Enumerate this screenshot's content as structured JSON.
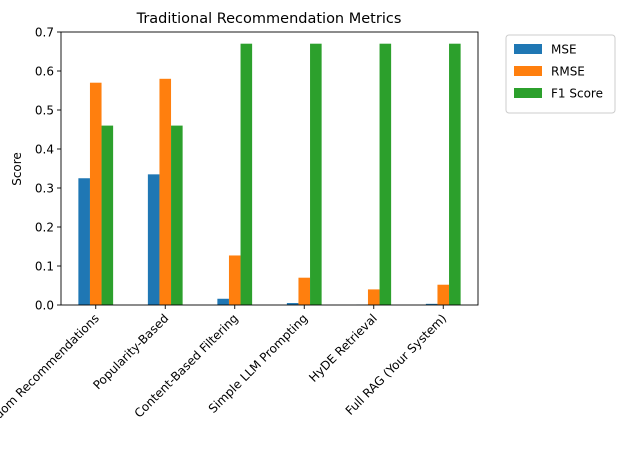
{
  "chart_data": {
    "type": "bar",
    "title": "Traditional Recommendation Metrics",
    "xlabel": "",
    "ylabel": "Score",
    "categories": [
      "Random Recommendations",
      "Popularity-Based",
      "Content-Based Filtering",
      "Simple LLM Prompting",
      "HyDE Retrieval",
      "Full RAG (Your System)"
    ],
    "series": [
      {
        "name": "MSE",
        "color": "#1f77b4",
        "values": [
          0.325,
          0.335,
          0.016,
          0.005,
          0.001,
          0.003
        ]
      },
      {
        "name": "RMSE",
        "color": "#ff7f0e",
        "values": [
          0.57,
          0.58,
          0.127,
          0.07,
          0.04,
          0.052
        ]
      },
      {
        "name": "F1 Score",
        "color": "#2ca02c",
        "values": [
          0.46,
          0.46,
          0.67,
          0.67,
          0.67,
          0.67
        ]
      }
    ],
    "ylim": [
      0.0,
      0.7
    ],
    "yticks": [
      "0.0",
      "0.1",
      "0.2",
      "0.3",
      "0.4",
      "0.5",
      "0.6",
      "0.7"
    ],
    "grid": false,
    "legend_position": "outside upper right"
  }
}
